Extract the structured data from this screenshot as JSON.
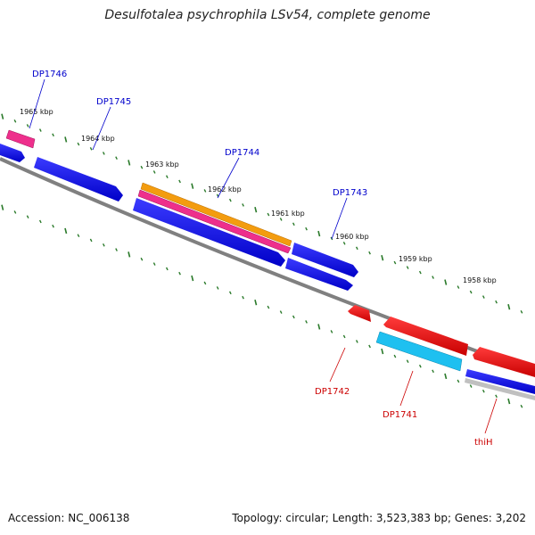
{
  "title": "Desulfotalea psychrophila LSv54, complete genome",
  "footer": {
    "accession": "Accession: NC_006138",
    "summary": "Topology: circular; Length: 3,523,383 bp; Genes: 3,202"
  },
  "kbp_labels": [
    "1965 kbp",
    "1964 kbp",
    "1963 kbp",
    "1962 kbp",
    "1961 kbp",
    "1960 kbp",
    "1959 kbp",
    "1958 kbp"
  ],
  "gene_labels": {
    "forward": [
      "DP1746",
      "DP1745",
      "DP1744",
      "DP1743"
    ],
    "reverse": [
      "DP1742",
      "DP1741",
      "thiH"
    ]
  },
  "colors": {
    "forward_label": "#0000cc",
    "reverse_label": "#cc0000",
    "tick": "#2a7a2a",
    "backbone": "#808080",
    "blue": "#0a0aee",
    "red": "#ee0a0a",
    "orange": "#f39c0f",
    "pink": "#ee2f8c",
    "cyan": "#1ec0f0",
    "gray": "#c0c0c0"
  }
}
